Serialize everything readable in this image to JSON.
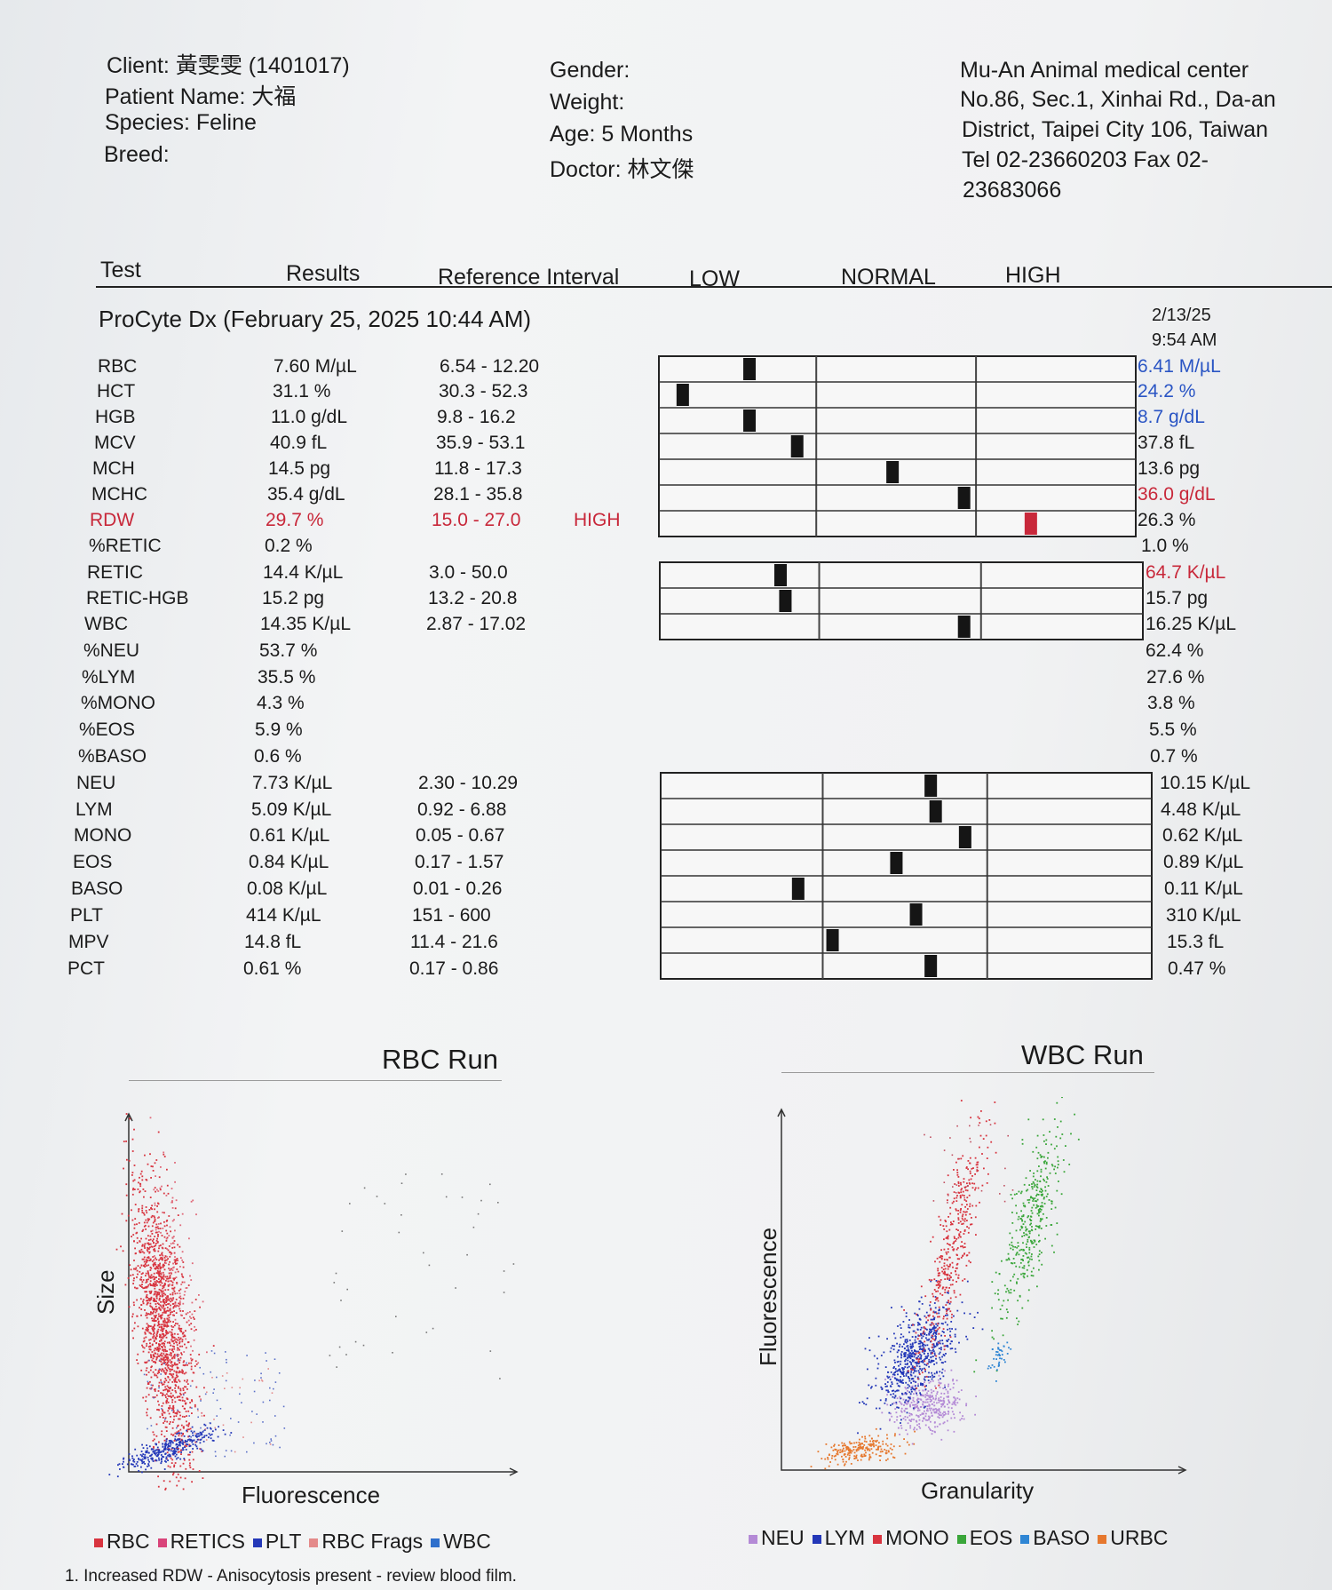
{
  "header": {
    "client": "Client: 黃雯雯 (1401017)",
    "patient": "Patient Name: 大福",
    "species": "Species: Feline",
    "breed": "Breed:",
    "gender": "Gender:",
    "weight": "Weight:",
    "age": "Age: 5 Months",
    "doctor": "Doctor: 林文傑",
    "clinic": [
      "Mu-An Animal medical center",
      "No.86, Sec.1, Xinhai Rd., Da-an",
      "District, Taipei City 106, Taiwan",
      "Tel 02-23660203  Fax 02-",
      "23683066"
    ]
  },
  "columns": {
    "test": "Test",
    "results": "Results",
    "ref": "Reference Interval",
    "low": "LOW",
    "normal": "NORMAL",
    "high": "HIGH"
  },
  "section_title": "ProCyte Dx (February 25, 2025 10:44 AM)",
  "prev_date": "2/13/25",
  "prev_time": "9:54 AM",
  "rows": [
    {
      "test": "RBC",
      "result": "7.60 M/µL",
      "ref": "6.54 - 12.20",
      "flag": "",
      "prev": "6.41 M/µL",
      "prev_color": "blue",
      "bar": 0.19
    },
    {
      "test": "HCT",
      "result": "31.1 %",
      "ref": "30.3 - 52.3",
      "flag": "",
      "prev": "24.2 %",
      "prev_color": "blue",
      "bar": 0.05
    },
    {
      "test": "HGB",
      "result": "11.0 g/dL",
      "ref": "9.8 - 16.2",
      "flag": "",
      "prev": "8.7 g/dL",
      "prev_color": "blue",
      "bar": 0.19
    },
    {
      "test": "MCV",
      "result": "40.9 fL",
      "ref": "35.9 - 53.1",
      "flag": "",
      "prev": "37.8 fL",
      "prev_color": "",
      "bar": 0.29
    },
    {
      "test": "MCH",
      "result": "14.5 pg",
      "ref": "11.8 - 17.3",
      "flag": "",
      "prev": "13.6 pg",
      "prev_color": "",
      "bar": 0.49
    },
    {
      "test": "MCHC",
      "result": "35.4 g/dL",
      "ref": "28.1 - 35.8",
      "flag": "",
      "prev": "36.0 g/dL",
      "prev_color": "red",
      "bar": 0.64
    },
    {
      "test": "RDW",
      "result": "29.7 %",
      "ref": "15.0 - 27.0",
      "flag": "HIGH",
      "prev": "26.3 %",
      "prev_color": "",
      "bar": 0.78
    },
    {
      "test": "%RETIC",
      "result": "0.2 %",
      "ref": "",
      "flag": "",
      "prev": "1.0 %",
      "prev_color": "",
      "bar": null
    },
    {
      "test": "RETIC",
      "result": "14.4 K/µL",
      "ref": "3.0 - 50.0",
      "flag": "",
      "prev": "64.7 K/µL",
      "prev_color": "red",
      "bar": 0.25
    },
    {
      "test": "RETIC-HGB",
      "result": "15.2 pg",
      "ref": "13.2 - 20.8",
      "flag": "",
      "prev": "15.7 pg",
      "prev_color": "",
      "bar": 0.26
    },
    {
      "test": "WBC",
      "result": "14.35 K/µL",
      "ref": "2.87 - 17.02",
      "flag": "",
      "prev": "16.25 K/µL",
      "prev_color": "",
      "bar": 0.63
    },
    {
      "test": "%NEU",
      "result": "53.7 %",
      "ref": "",
      "flag": "",
      "prev": "62.4 %",
      "prev_color": "",
      "bar": null
    },
    {
      "test": "%LYM",
      "result": "35.5 %",
      "ref": "",
      "flag": "",
      "prev": "27.6 %",
      "prev_color": "",
      "bar": null
    },
    {
      "test": "%MONO",
      "result": "4.3 %",
      "ref": "",
      "flag": "",
      "prev": "3.8 %",
      "prev_color": "",
      "bar": null
    },
    {
      "test": "%EOS",
      "result": "5.9 %",
      "ref": "",
      "flag": "",
      "prev": "5.5 %",
      "prev_color": "",
      "bar": null
    },
    {
      "test": "%BASO",
      "result": "0.6 %",
      "ref": "",
      "flag": "",
      "prev": "0.7 %",
      "prev_color": "",
      "bar": null
    },
    {
      "test": "NEU",
      "result": "7.73 K/µL",
      "ref": "2.30 - 10.29",
      "flag": "",
      "prev": "10.15 K/µL",
      "prev_color": "",
      "bar": 0.55
    },
    {
      "test": "LYM",
      "result": "5.09 K/µL",
      "ref": "0.92 - 6.88",
      "flag": "",
      "prev": "4.48 K/µL",
      "prev_color": "",
      "bar": 0.56
    },
    {
      "test": "MONO",
      "result": "0.61 K/µL",
      "ref": "0.05 - 0.67",
      "flag": "",
      "prev": "0.62 K/µL",
      "prev_color": "",
      "bar": 0.62
    },
    {
      "test": "EOS",
      "result": "0.84 K/µL",
      "ref": "0.17 - 1.57",
      "flag": "",
      "prev": "0.89 K/µL",
      "prev_color": "",
      "bar": 0.48
    },
    {
      "test": "BASO",
      "result": "0.08 K/µL",
      "ref": "0.01 - 0.26",
      "flag": "",
      "prev": "0.11 K/µL",
      "prev_color": "",
      "bar": 0.28
    },
    {
      "test": "PLT",
      "result": "414 K/µL",
      "ref": "151 - 600",
      "flag": "",
      "prev": "310 K/µL",
      "prev_color": "",
      "bar": 0.52
    },
    {
      "test": "MPV",
      "result": "14.8 fL",
      "ref": "11.4 - 21.6",
      "flag": "",
      "prev": "15.3 fL",
      "prev_color": "",
      "bar": 0.35
    },
    {
      "test": "PCT",
      "result": "0.61 %",
      "ref": "0.17 - 0.86",
      "flag": "",
      "prev": "0.47 %",
      "prev_color": "",
      "bar": 0.55
    }
  ],
  "rbc_run": {
    "title": "RBC Run",
    "xlabel": "Fluorescence",
    "ylabel": "Size",
    "legend": [
      {
        "label": "RBC",
        "color": "#d8343f"
      },
      {
        "label": "RETICS",
        "color": "#d9447a"
      },
      {
        "label": "PLT",
        "color": "#2438b8"
      },
      {
        "label": "RBC Frags",
        "color": "#e48a8a"
      },
      {
        "label": "WBC",
        "color": "#2f6fcc"
      }
    ]
  },
  "wbc_run": {
    "title": "WBC Run",
    "xlabel": "Granularity",
    "ylabel": "Fluorescence",
    "legend": [
      {
        "label": "NEU",
        "color": "#b48ad6"
      },
      {
        "label": "LYM",
        "color": "#2438b8"
      },
      {
        "label": "MONO",
        "color": "#d8343f"
      },
      {
        "label": "EOS",
        "color": "#3aa63a"
      },
      {
        "label": "BASO",
        "color": "#2f86d4"
      },
      {
        "label": "URBC",
        "color": "#e6782e"
      }
    ]
  },
  "footnote": "1. Increased RDW - Anisocytosis present - review blood film.",
  "colors": {
    "high": "#c8283a",
    "prev_low": "#2a55c4",
    "marker": "#151515",
    "marker_high": "#c8283a"
  }
}
